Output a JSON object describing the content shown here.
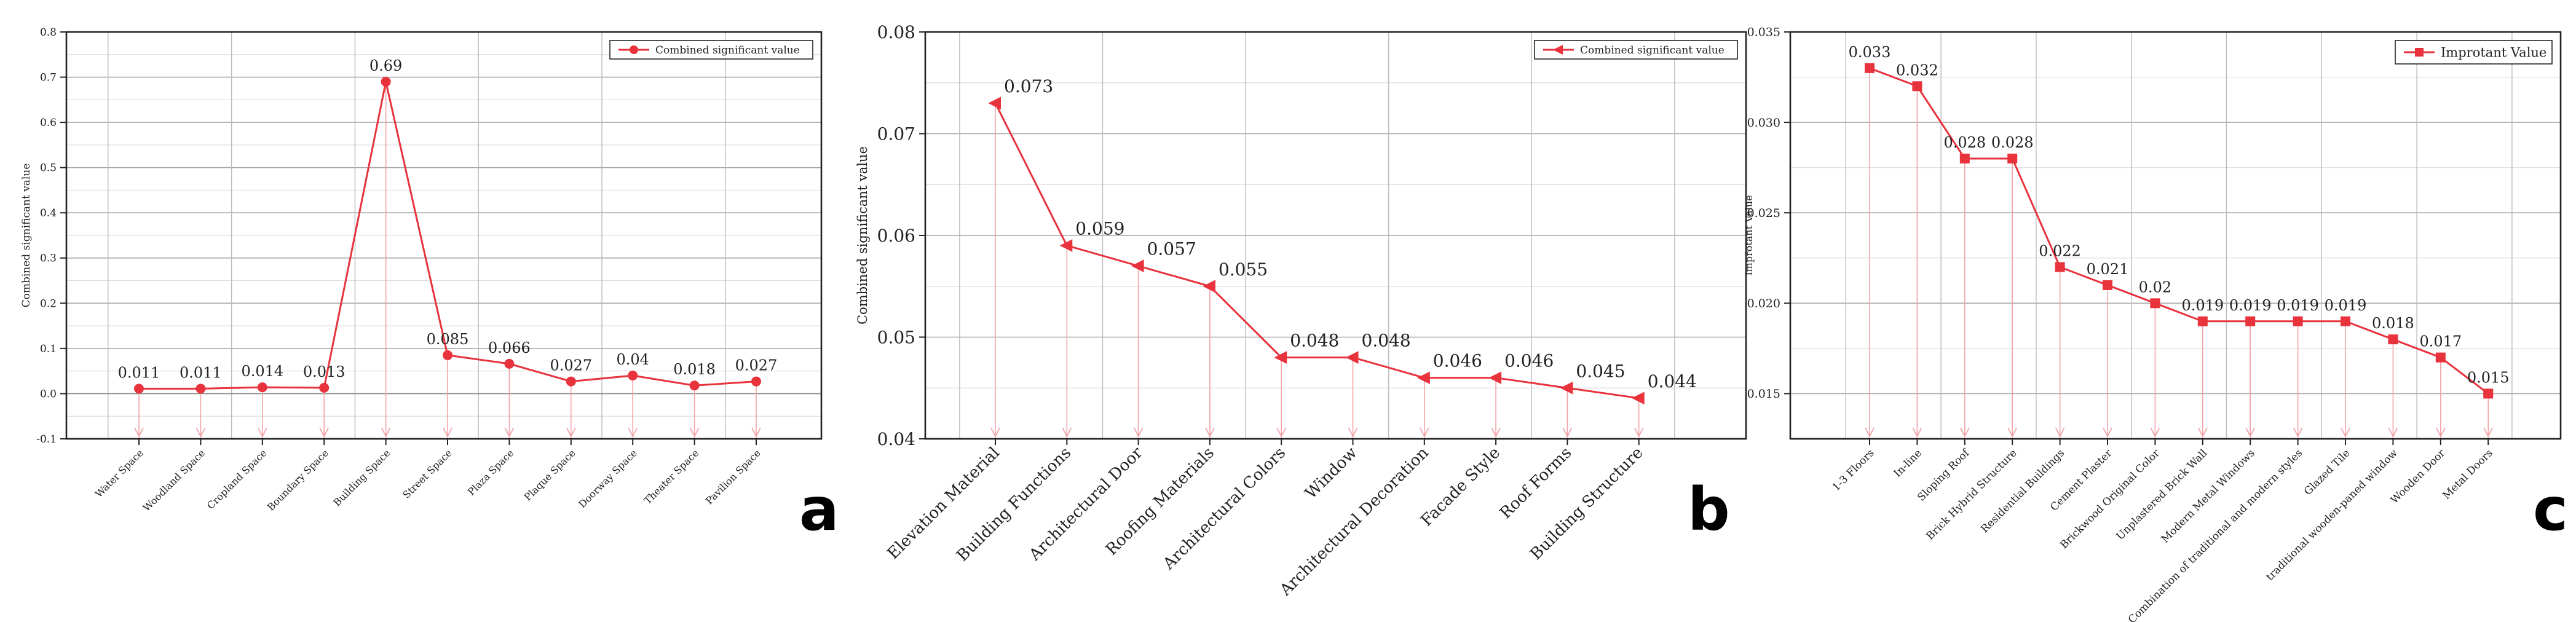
{
  "chart_data": [
    {
      "panel": "a",
      "type": "line",
      "title": "",
      "xlabel": "",
      "ylabel": "Combined significant value",
      "ylim": [
        -0.1,
        0.8
      ],
      "yticks": [
        "-0.1",
        "0.0",
        "0.1",
        "0.2",
        "0.3",
        "0.4",
        "0.5",
        "0.6",
        "0.7",
        "0.8"
      ],
      "categories": [
        "Water Space",
        "Woodland Space",
        "Cropland Space",
        "Boundary Space",
        "Building Space",
        "Street Space",
        "Plaza Space",
        "Plaque Space",
        "Doorway Space",
        "Theater Space",
        "Pavilion Space"
      ],
      "series": [
        {
          "name": "Combined significant value",
          "values": [
            0.011,
            0.011,
            0.014,
            0.013,
            0.69,
            0.085,
            0.066,
            0.027,
            0.04,
            0.018,
            0.027
          ],
          "labels": [
            "0.011",
            "0.011",
            "0.014",
            "0.013",
            "0.69",
            "0.085",
            "0.066",
            "0.027",
            "0.04",
            "0.018",
            "0.027"
          ]
        }
      ],
      "marker": "circle",
      "legend_position": "top-right",
      "grid": true,
      "drop_lines": true,
      "color": "#e8323c"
    },
    {
      "panel": "b",
      "type": "line",
      "title": "",
      "xlabel": "",
      "ylabel": "Combined significant value",
      "ylim": [
        0.04,
        0.08
      ],
      "yticks": [
        "0.04",
        "0.05",
        "0.06",
        "0.07",
        "0.08"
      ],
      "categories": [
        "Elevation Material",
        "Building Functions",
        "Architectural Door",
        "Roofing Materials",
        "Architectural Colors",
        "Window",
        "Architectural Decoration",
        "Facade Style",
        "Roof Forms",
        "Building Structure"
      ],
      "series": [
        {
          "name": "Combined significant value",
          "values": [
            0.073,
            0.059,
            0.057,
            0.055,
            0.048,
            0.048,
            0.046,
            0.046,
            0.045,
            0.044
          ],
          "labels": [
            "0.073",
            "0.059",
            "0.057",
            "0.055",
            "0.048",
            "0.048",
            "0.046",
            "0.046",
            "0.045",
            "0.044"
          ]
        }
      ],
      "marker": "triangle-left",
      "legend_position": "top-right",
      "grid": true,
      "drop_lines": true,
      "color": "#e8323c"
    },
    {
      "panel": "c",
      "type": "line",
      "title": "",
      "xlabel": "",
      "ylabel": "Improtant Value",
      "ylim": [
        0.0125,
        0.035
      ],
      "yticks": [
        "0.015",
        "0.020",
        "0.025",
        "0.030",
        "0.035"
      ],
      "ytick_values": [
        0.015,
        0.02,
        0.025,
        0.03,
        0.035
      ],
      "categories": [
        "1-3 Floors",
        "In-line",
        "Sloping Roof",
        "Brick Hybrid Structure",
        "Residential Buildings",
        "Cement Plaster",
        "Brickwood Original Color",
        "Unplastered Brick Wall",
        "Modern Metal Windows",
        "Combination of traditional and modern styles",
        "Glazed Tile",
        "traditional wooden-paned window",
        "Wooden Door",
        "Metal Doors"
      ],
      "series": [
        {
          "name": "Improtant Value",
          "values": [
            0.033,
            0.032,
            0.028,
            0.028,
            0.022,
            0.021,
            0.02,
            0.019,
            0.019,
            0.019,
            0.019,
            0.018,
            0.017,
            0.015
          ],
          "labels": [
            "0.033",
            "0.032",
            "0.028",
            "0.028",
            "0.022",
            "0.021",
            "0.02",
            "0.019",
            "0.019",
            "0.019",
            "0.019",
            "0.018",
            "0.017",
            "0.015"
          ]
        }
      ],
      "marker": "square",
      "legend_position": "top-right",
      "grid": true,
      "drop_lines": true,
      "color": "#e8323c"
    }
  ],
  "panel_letters": [
    "a",
    "b",
    "c"
  ]
}
